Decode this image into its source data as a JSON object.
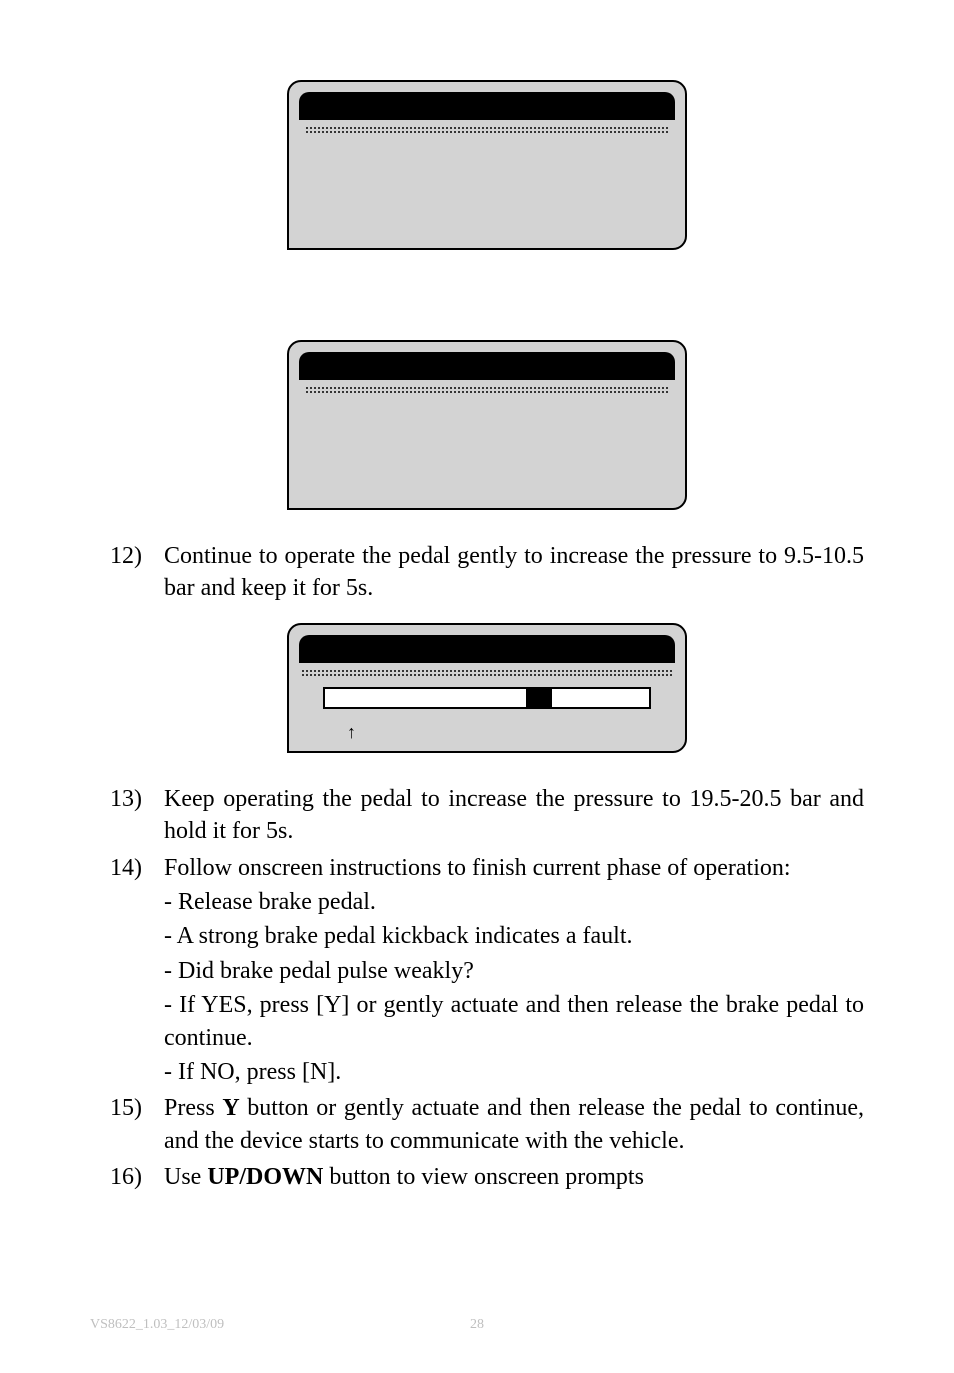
{
  "screens": {
    "screen1": {
      "has_progress": false
    },
    "screen2": {
      "has_progress": false
    },
    "screen3": {
      "has_progress": true,
      "progress_left_pct": 62,
      "progress_width_pct": 8
    }
  },
  "steps": {
    "s12": {
      "num": "12)",
      "text": "Continue to operate the pedal gently to increase the pressure to 9.5-10.5 bar and keep it for 5s."
    },
    "s13": {
      "num": "13)",
      "text": "Keep operating the pedal to increase the pressure to 19.5-20.5 bar and hold it for 5s."
    },
    "s14": {
      "num": "14)",
      "text": "Follow onscreen instructions to finish current phase of operation:",
      "sub": [
        "- Release brake pedal.",
        "- A strong brake pedal kickback indicates a fault.",
        "- Did brake pedal pulse weakly?",
        "- If YES, press [Y] or gently actuate and then release the brake pedal to continue.",
        "- If NO, press [N]."
      ]
    },
    "s15": {
      "num": "15)",
      "text_parts": [
        "Press ",
        "Y",
        " button or gently actuate and then release the pedal to continue, and the device starts to communicate with the vehicle."
      ]
    },
    "s16": {
      "num": "16)",
      "text_parts": [
        "Use ",
        "UP/DOWN",
        " button to view onscreen prompts"
      ]
    }
  },
  "footer": {
    "doc_id": "VS8622_1.03_12/03/09",
    "page": "28"
  },
  "arrow_glyph": "↑"
}
